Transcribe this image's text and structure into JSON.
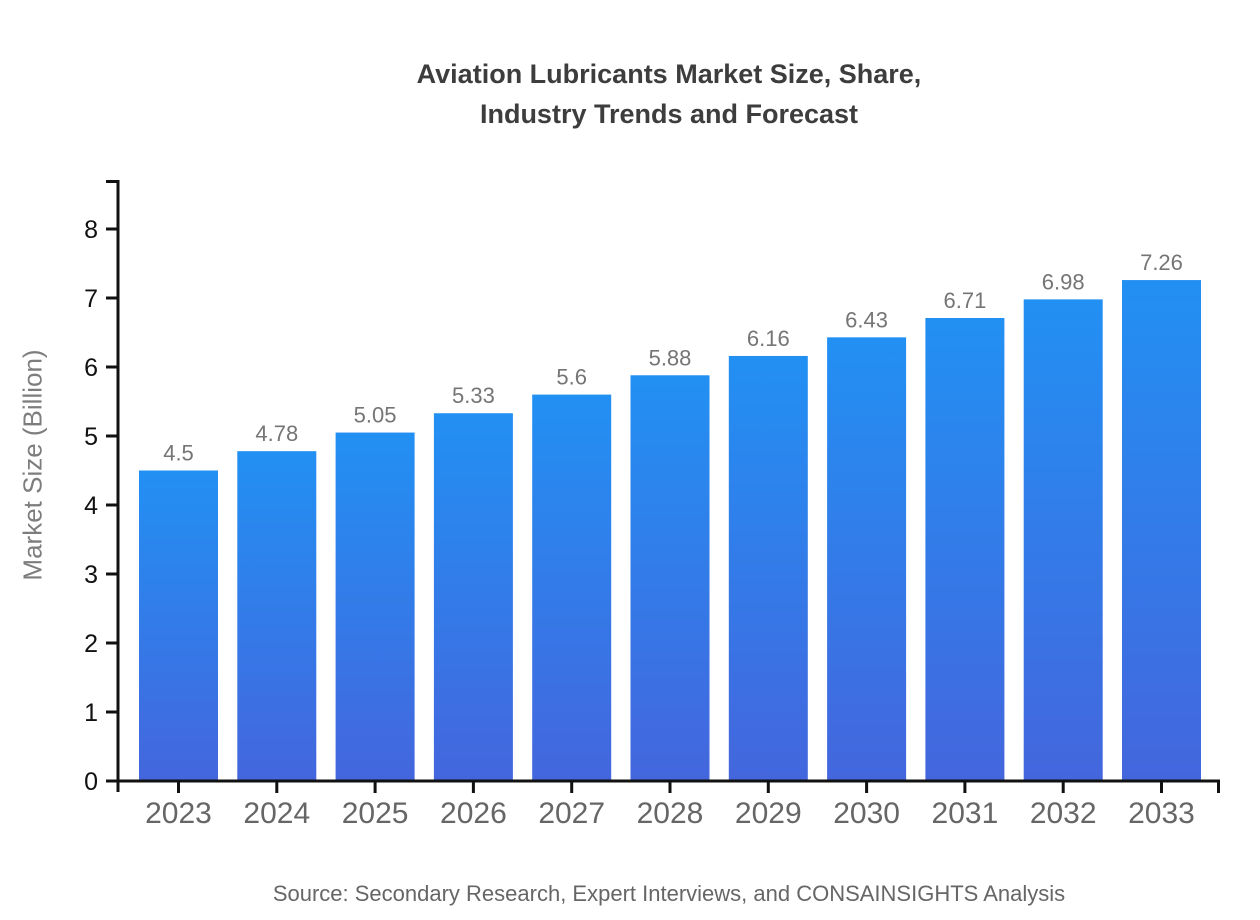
{
  "title": {
    "line1": "Aviation Lubricants Market Size, Share,",
    "line2": "Industry Trends and Forecast"
  },
  "source": "Source: Secondary Research, Expert Interviews, and CONSAINSIGHTS Analysis",
  "chart_data": {
    "type": "bar",
    "title": "Aviation Lubricants Market Size, Share, Industry Trends and Forecast",
    "categories": [
      "2023",
      "2024",
      "2025",
      "2026",
      "2027",
      "2028",
      "2029",
      "2030",
      "2031",
      "2032",
      "2033"
    ],
    "values": [
      4.5,
      4.78,
      5.05,
      5.33,
      5.6,
      5.88,
      6.16,
      6.43,
      6.71,
      6.98,
      7.26
    ],
    "value_labels": [
      "4.5",
      "4.78",
      "5.05",
      "5.33",
      "5.6",
      "5.88",
      "6.16",
      "6.43",
      "6.71",
      "6.98",
      "7.26"
    ],
    "xlabel": "",
    "ylabel": "Market Size (Billion)",
    "ylim": [
      0,
      8
    ],
    "yticks": [
      0,
      1,
      2,
      3,
      4,
      5,
      6,
      7,
      8
    ],
    "grid": false,
    "legend": false,
    "colors": {
      "bar_gradient_top": "#2290F3",
      "bar_gradient_bottom": "#4466DD",
      "axis": "#111111",
      "y_tick_label": "#111111",
      "x_tick_label": "#666666",
      "value_label": "#757575"
    }
  }
}
